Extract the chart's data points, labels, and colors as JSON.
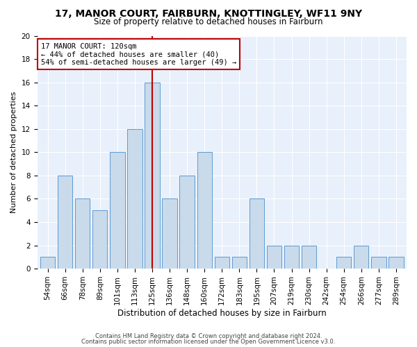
{
  "title1": "17, MANOR COURT, FAIRBURN, KNOTTINGLEY, WF11 9NY",
  "title2": "Size of property relative to detached houses in Fairburn",
  "xlabel": "Distribution of detached houses by size in Fairburn",
  "ylabel": "Number of detached properties",
  "bins": [
    "54sqm",
    "66sqm",
    "78sqm",
    "89sqm",
    "101sqm",
    "113sqm",
    "125sqm",
    "136sqm",
    "148sqm",
    "160sqm",
    "172sqm",
    "183sqm",
    "195sqm",
    "207sqm",
    "219sqm",
    "230sqm",
    "242sqm",
    "254sqm",
    "266sqm",
    "277sqm",
    "289sqm"
  ],
  "values": [
    1,
    8,
    6,
    5,
    10,
    12,
    16,
    6,
    8,
    10,
    1,
    1,
    6,
    2,
    2,
    2,
    0,
    1,
    2,
    1,
    1
  ],
  "bar_color": "#c9daea",
  "bar_edge_color": "#5b9bd5",
  "highlight_index": 6,
  "highlight_color": "#c00000",
  "annotation_line1": "17 MANOR COURT: 120sqm",
  "annotation_line2": "← 44% of detached houses are smaller (40)",
  "annotation_line3": "54% of semi-detached houses are larger (49) →",
  "annotation_box_color": "white",
  "annotation_box_edge": "#c00000",
  "ylim": [
    0,
    20
  ],
  "yticks": [
    0,
    2,
    4,
    6,
    8,
    10,
    12,
    14,
    16,
    18,
    20
  ],
  "footer1": "Contains HM Land Registry data © Crown copyright and database right 2024.",
  "footer2": "Contains public sector information licensed under the Open Government Licence v3.0.",
  "bg_color": "#e8f0fb",
  "grid_color": "white",
  "title1_fontsize": 10,
  "title2_fontsize": 8.5,
  "ylabel_fontsize": 8,
  "xlabel_fontsize": 8.5,
  "tick_fontsize": 7.5,
  "footer_fontsize": 6.0,
  "annotation_fontsize": 7.5
}
